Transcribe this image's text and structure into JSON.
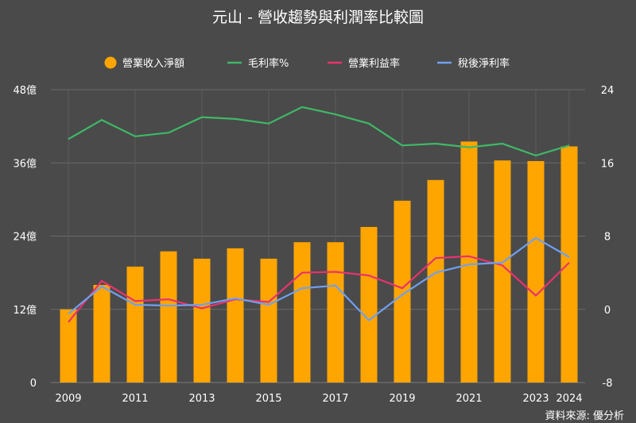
{
  "chart_data": {
    "type": "bar",
    "title": "元山 - 營收趨勢與利潤率比較圖",
    "source": "資料來源: 優分析",
    "x": [
      2009,
      2010,
      2011,
      2012,
      2013,
      2014,
      2015,
      2016,
      2017,
      2018,
      2019,
      2020,
      2021,
      2022,
      2023,
      2024
    ],
    "x_tick_labels": [
      "2009",
      "2011",
      "2013",
      "2015",
      "2017",
      "2019",
      "2021",
      "2023",
      "2024"
    ],
    "y_left": {
      "ylim": [
        0,
        48
      ],
      "ticks": [
        0,
        12,
        24,
        36,
        48
      ],
      "tick_labels": [
        "0",
        "12億",
        "24億",
        "36億",
        "48億"
      ]
    },
    "y_right": {
      "ylim": [
        -8,
        24
      ],
      "ticks": [
        -8,
        0,
        8,
        16,
        24
      ],
      "tick_labels": [
        "-8",
        "0",
        "8",
        "16",
        "24"
      ]
    },
    "grid": "horizontal",
    "legend_position": "top-center",
    "series": [
      {
        "name": "營業收入淨額",
        "type": "bar",
        "axis": "left",
        "color": "#ffa500",
        "values": [
          12,
          16,
          19,
          21.5,
          20.3,
          22,
          20.3,
          23,
          23,
          25.5,
          29.8,
          33.2,
          39.5,
          36.4,
          36.3,
          38.7
        ]
      },
      {
        "name": "毛利率%",
        "type": "line",
        "axis": "right",
        "color": "#3fb867",
        "values": [
          18.6,
          20.7,
          18.9,
          19.3,
          21,
          20.8,
          20.3,
          22.1,
          21.3,
          20.3,
          17.9,
          18.1,
          17.7,
          18.1,
          16.8,
          17.9
        ]
      },
      {
        "name": "營業利益率",
        "type": "line",
        "axis": "right",
        "color": "#e8336d",
        "values": [
          -1.4,
          3.1,
          0.9,
          1.1,
          0.1,
          1.1,
          0.8,
          4,
          4.1,
          3.7,
          2.3,
          5.6,
          5.8,
          4.8,
          1.5,
          5.1
        ]
      },
      {
        "name": "稅後淨利率",
        "type": "line",
        "axis": "right",
        "color": "#6fa0f0",
        "values": [
          -0.5,
          2.5,
          0.5,
          0.4,
          0.5,
          1.2,
          0.5,
          2.3,
          2.6,
          -1.2,
          1.6,
          4,
          4.9,
          5.1,
          7.8,
          5.7
        ]
      }
    ]
  }
}
